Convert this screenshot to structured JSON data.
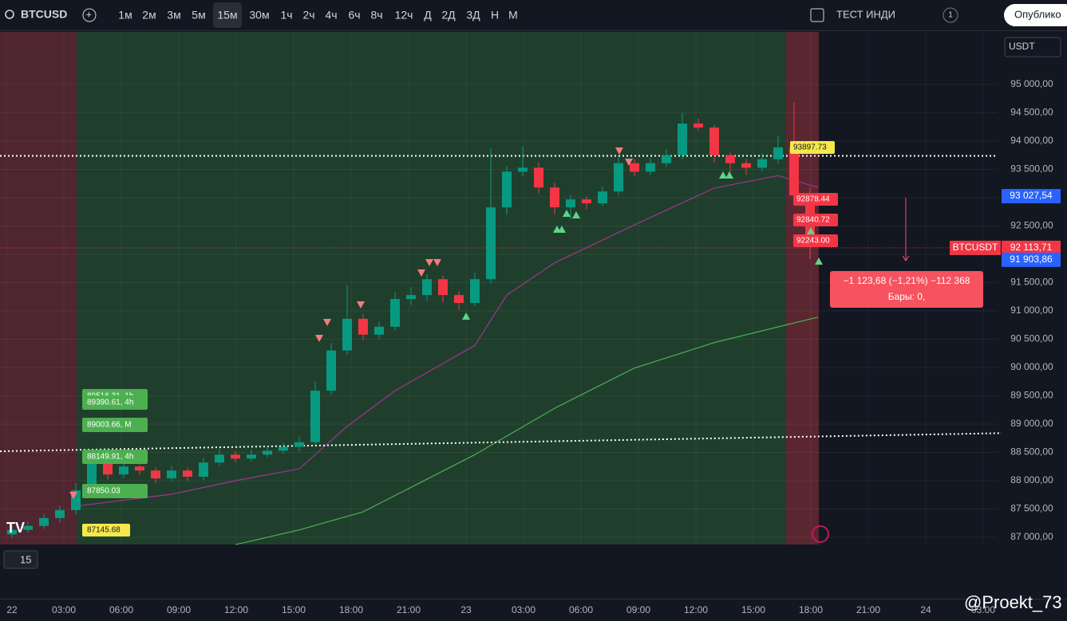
{
  "toolbar": {
    "symbol": "BTCUSD",
    "intervals": [
      "1м",
      "2м",
      "3м",
      "5м",
      "15м",
      "30м",
      "1ч",
      "2ч",
      "4ч",
      "6ч",
      "8ч",
      "12ч",
      "Д",
      "2Д",
      "3Д",
      "Н",
      "М"
    ],
    "indicator": "ТЕСТ ИНДИ",
    "indicator_count": "1",
    "publish": "Опублико"
  },
  "chart": {
    "currency": "USDT",
    "ylim": [
      86873,
      95930
    ],
    "yticks": [
      {
        "value": 95000,
        "label": "95 000,00"
      },
      {
        "value": 94500,
        "label": "94 500,00"
      },
      {
        "value": 94000,
        "label": "94 000,00"
      },
      {
        "value": 93500,
        "label": "93 500,00"
      },
      {
        "value": 93000,
        "label": "93 000,00"
      },
      {
        "value": 92500,
        "label": "92 500,00"
      },
      {
        "value": 92000,
        "label": "92 000,00"
      },
      {
        "value": 91500,
        "label": "91 500,00"
      },
      {
        "value": 91000,
        "label": "91 000,00"
      },
      {
        "value": 90500,
        "label": "90 500,00"
      },
      {
        "value": 90000,
        "label": "90 000,00"
      },
      {
        "value": 89500,
        "label": "89 500,00"
      },
      {
        "value": 89000,
        "label": "89 000,00"
      },
      {
        "value": 88500,
        "label": "88 500,00"
      },
      {
        "value": 88000,
        "label": "88 000,00"
      },
      {
        "value": 87500,
        "label": "87 500,00"
      },
      {
        "value": 87000,
        "label": "87 000,00"
      }
    ],
    "time_labels": [
      "22",
      "03:00",
      "06:00",
      "09:00",
      "12:00",
      "15:00",
      "18:00",
      "21:00",
      "23",
      "03:00",
      "06:00",
      "09:00",
      "12:00",
      "15:00",
      "18:00",
      "21:00",
      "24",
      "03:00"
    ],
    "candles": [
      [
        87050,
        87210,
        86990,
        87130
      ],
      [
        87130,
        87280,
        87080,
        87200
      ],
      [
        87200,
        87420,
        87150,
        87340
      ],
      [
        87340,
        87560,
        87260,
        87480
      ],
      [
        87480,
        87960,
        87400,
        87830
      ],
      [
        87830,
        88480,
        87750,
        88320
      ],
      [
        88320,
        88400,
        88020,
        88110
      ],
      [
        88110,
        88330,
        88040,
        88250
      ],
      [
        88250,
        88290,
        88100,
        88180
      ],
      [
        88180,
        88240,
        87960,
        88040
      ],
      [
        88040,
        88270,
        87990,
        88180
      ],
      [
        88180,
        88230,
        87990,
        88070
      ],
      [
        88070,
        88400,
        88010,
        88320
      ],
      [
        88320,
        88560,
        88260,
        88460
      ],
      [
        88460,
        88520,
        88330,
        88390
      ],
      [
        88390,
        88540,
        88340,
        88460
      ],
      [
        88460,
        88620,
        88410,
        88530
      ],
      [
        88530,
        88670,
        88470,
        88600
      ],
      [
        88600,
        88780,
        88520,
        88680
      ],
      [
        88680,
        89750,
        88630,
        89590
      ],
      [
        89590,
        90430,
        89520,
        90300
      ],
      [
        90300,
        91450,
        90220,
        90860
      ],
      [
        90860,
        90940,
        90480,
        90580
      ],
      [
        90580,
        90810,
        90500,
        90720
      ],
      [
        90720,
        91330,
        90660,
        91210
      ],
      [
        91210,
        91420,
        91100,
        91280
      ],
      [
        91280,
        91650,
        91180,
        91560
      ],
      [
        91560,
        91620,
        91150,
        91280
      ],
      [
        91280,
        91350,
        91020,
        91140
      ],
      [
        91140,
        91680,
        91080,
        91560
      ],
      [
        91560,
        93880,
        91480,
        92830
      ],
      [
        92830,
        93560,
        92700,
        93460
      ],
      [
        93460,
        93900,
        93380,
        93530
      ],
      [
        93530,
        93620,
        93080,
        93180
      ],
      [
        93180,
        93260,
        92700,
        92830
      ],
      [
        92830,
        93050,
        92620,
        92970
      ],
      [
        92970,
        93020,
        92800,
        92900
      ],
      [
        92900,
        93200,
        92850,
        93110
      ],
      [
        93110,
        93720,
        93050,
        93610
      ],
      [
        93610,
        93680,
        93380,
        93460
      ],
      [
        93460,
        93700,
        93400,
        93610
      ],
      [
        93610,
        93860,
        93540,
        93750
      ],
      [
        93750,
        94500,
        93680,
        94310
      ],
      [
        94310,
        94400,
        94180,
        94240
      ],
      [
        94240,
        94290,
        93620,
        93750
      ],
      [
        93750,
        93800,
        93450,
        93610
      ],
      [
        93610,
        93680,
        93400,
        93530
      ],
      [
        93530,
        93780,
        93460,
        93680
      ],
      [
        93680,
        94100,
        93600,
        93890
      ],
      [
        93890,
        94680,
        92980,
        93040
      ],
      [
        93040,
        93180,
        91920,
        92270
      ]
    ],
    "up_color": "#089981",
    "down_color": "#f23645",
    "ma_fast": {
      "color": "#a3338f",
      "x": [
        4,
        10,
        14,
        18,
        21,
        24,
        29,
        31,
        34,
        39,
        44,
        48,
        50.5
      ],
      "values": [
        87550,
        87760,
        88000,
        88210,
        88960,
        89590,
        90390,
        91280,
        91850,
        92520,
        93170,
        93390,
        93180
      ]
    },
    "ma_slow": {
      "color": "#4caf50",
      "x": [
        14,
        18,
        22,
        29,
        34,
        39,
        44,
        50.5
      ],
      "values": [
        86870,
        87130,
        87450,
        88460,
        89280,
        89990,
        90440,
        90890
      ]
    },
    "level": 93740,
    "trendline": [
      88520,
      88840
    ],
    "price_tags": [
      {
        "value": 93027.54,
        "label": "93 027,54",
        "color": "#2962ff"
      },
      {
        "value": 92113.71,
        "label": "92 113,71",
        "color": "#f23645"
      },
      {
        "value": 91903.86,
        "label": "91 903,86",
        "color": "#2962ff"
      }
    ],
    "symbol_tag": "BTCUSDT",
    "right_labels": [
      "93897.73",
      "92878.44",
      "92840.72",
      "92243.00"
    ],
    "left_labels": [
      "89516.31, 1h",
      "89390.61, 4h",
      "89003.66, M",
      "88149.91, 4h",
      "87850.03"
    ],
    "left_yellow": "87145.68",
    "measure": {
      "line1": "−1 123,68 (−1,21%) −112 368",
      "line2": "Бары: 0,"
    }
  },
  "pane_value": "15",
  "watermark": "@Proekt_73"
}
